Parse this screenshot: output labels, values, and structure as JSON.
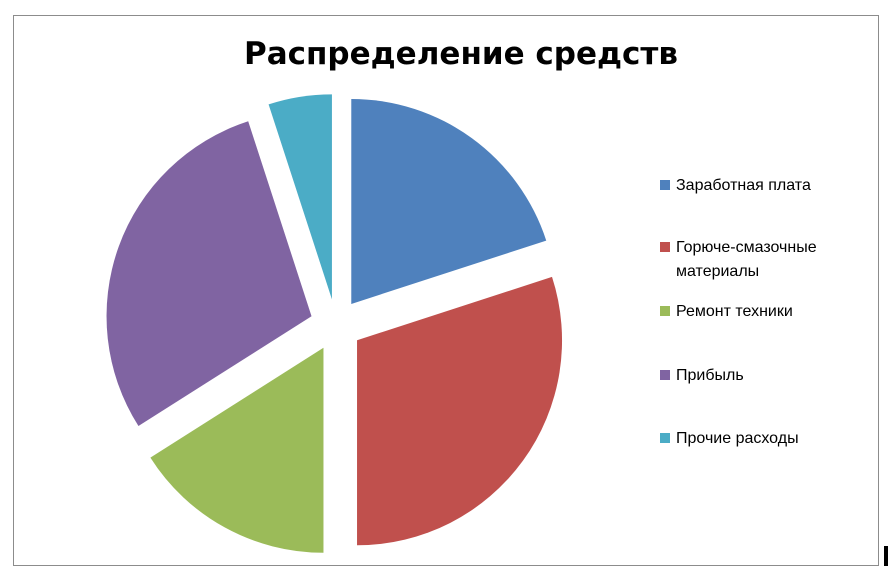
{
  "chart_data": {
    "type": "pie",
    "exploded": true,
    "title": "Распределение средств",
    "categories": [
      "Заработная плата",
      "Горюче-смазочные материалы",
      "Ремонт техники",
      "Прибыль",
      "Прочие расходы"
    ],
    "values": [
      20,
      30,
      16,
      29,
      5
    ],
    "colors": [
      "#4F81BD",
      "#C0504D",
      "#9BBB59",
      "#8064A2",
      "#4BACC6"
    ],
    "legend_position": "right"
  }
}
